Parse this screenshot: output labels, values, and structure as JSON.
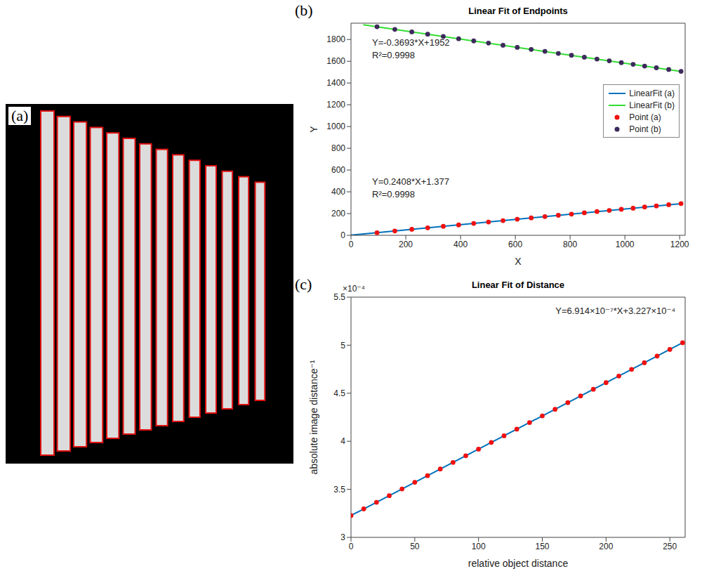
{
  "chart_data": [
    {
      "type": "image",
      "label": "(a)"
    },
    {
      "type": "scatter",
      "label": "(b)",
      "title": "Linear Fit of Endpoints",
      "xlabel": "X",
      "ylabel": "Y",
      "xlim": [
        0,
        1220
      ],
      "xticks": [
        0,
        200,
        400,
        600,
        800,
        1000,
        1200
      ],
      "ylim": [
        0,
        1950
      ],
      "yticks": [
        0,
        200,
        400,
        600,
        800,
        1000,
        1200,
        1400,
        1600,
        1800
      ],
      "grid": false,
      "legend": "right",
      "annotations": [
        [
          "Y=-0.3693*X+1952",
          "R²=0.9998"
        ],
        [
          "Y=0.2408*X+1.377",
          "R²=0.9998"
        ]
      ],
      "series": [
        {
          "name": "LinearFit (a)",
          "type": "line",
          "color": "#0072bd",
          "x": [
            0,
            1210
          ],
          "values": [
            1.377,
            292.7
          ]
        },
        {
          "name": "LinearFit (b)",
          "type": "line",
          "color": "#33dd33",
          "x": [
            45,
            1210
          ],
          "values": [
            1935,
            1505
          ]
        },
        {
          "name": "Point (a)",
          "type": "scatter",
          "color": "#ee1111",
          "x": [
            95,
            160,
            222,
            280,
            337,
            393,
            448,
            502,
            555,
            607,
            658,
            708,
            757,
            805,
            852,
            898,
            943,
            987,
            1030,
            1072,
            1115,
            1160,
            1205
          ],
          "values": [
            24,
            40,
            55,
            69,
            83,
            96,
            109,
            122,
            135,
            148,
            160,
            172,
            184,
            195,
            207,
            218,
            229,
            239,
            249,
            260,
            270,
            281,
            292
          ]
        },
        {
          "name": "Point (b)",
          "type": "scatter",
          "color": "#3d2a5c",
          "x": [
            95,
            160,
            222,
            280,
            337,
            393,
            448,
            502,
            555,
            607,
            658,
            708,
            757,
            805,
            852,
            898,
            943,
            987,
            1030,
            1072,
            1115,
            1160,
            1205
          ],
          "values": [
            1917,
            1893,
            1870,
            1849,
            1828,
            1807,
            1787,
            1767,
            1747,
            1728,
            1709,
            1691,
            1672,
            1655,
            1637,
            1620,
            1604,
            1587,
            1572,
            1556,
            1540,
            1524,
            1507
          ]
        }
      ]
    },
    {
      "type": "scatter",
      "label": "(c)",
      "title": "Linear Fit of Distance",
      "xlabel": "relative object distance",
      "ylabel": "absolute image distance⁻¹",
      "y_scale_label": "×10⁻⁴",
      "xlim": [
        0,
        262
      ],
      "xticks": [
        0,
        50,
        100,
        150,
        200,
        250
      ],
      "ylim": [
        0.0003,
        0.00055
      ],
      "yticks": [
        {
          "value": 0.0003,
          "label": "3"
        },
        {
          "value": 0.00035,
          "label": "3.5"
        },
        {
          "value": 0.0004,
          "label": "4"
        },
        {
          "value": 0.00045,
          "label": "4.5"
        },
        {
          "value": 0.0005,
          "label": "5"
        },
        {
          "value": 0.00055,
          "label": "5.5"
        }
      ],
      "grid": false,
      "annotations": [
        [
          "Y=6.914×10⁻⁷*X+3.227×10⁻⁴"
        ]
      ],
      "series": [
        {
          "type": "line",
          "color": "#0072bd",
          "x": [
            0,
            260
          ],
          "values": [
            0.0003227,
            0.0005025
          ]
        },
        {
          "type": "scatter",
          "color": "#ee1111",
          "x": [
            0,
            10,
            20,
            30,
            40,
            50,
            60,
            70,
            80,
            90,
            100,
            110,
            120,
            130,
            140,
            150,
            160,
            170,
            180,
            190,
            200,
            210,
            220,
            230,
            240,
            250,
            260
          ],
          "values": [
            0.0003227,
            0.0003296,
            0.0003365,
            0.0003434,
            0.0003504,
            0.0003573,
            0.0003642,
            0.0003711,
            0.000378,
            0.0003849,
            0.0003918,
            0.0003988,
            0.0004057,
            0.0004126,
            0.0004195,
            0.0004264,
            0.0004333,
            0.0004402,
            0.0004472,
            0.0004541,
            0.000461,
            0.0004679,
            0.0004748,
            0.0004817,
            0.0004886,
            0.0004956,
            0.0005025
          ]
        }
      ]
    }
  ]
}
